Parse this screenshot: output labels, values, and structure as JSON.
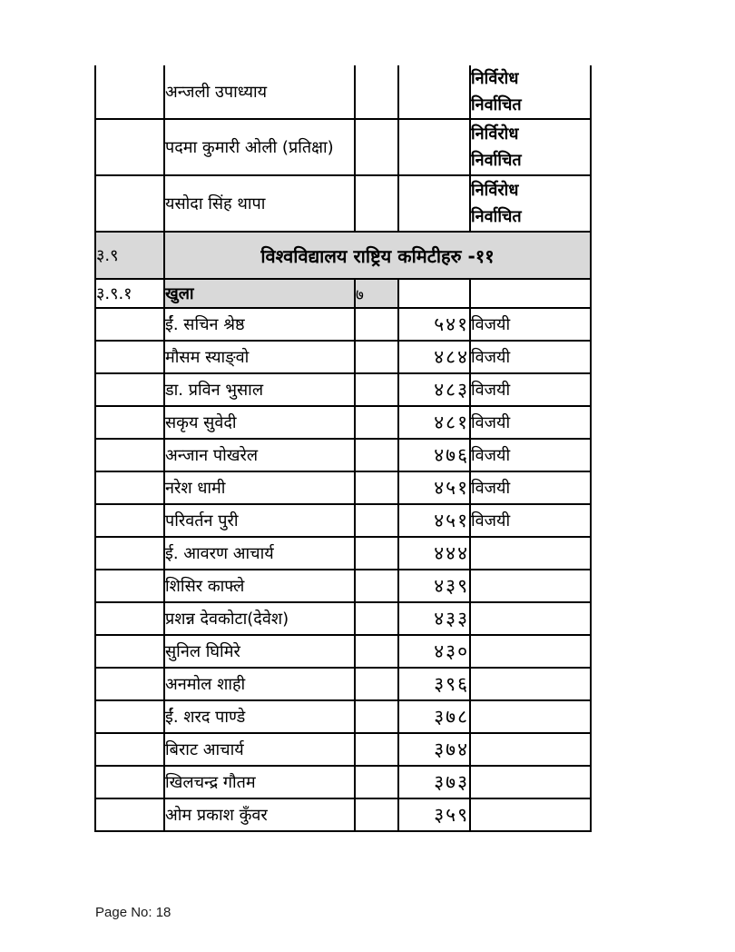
{
  "table": {
    "colors": {
      "header_bg": "#d9d9d9",
      "border": "#000000",
      "page_bg": "#ffffff"
    },
    "unopposed": [
      {
        "name": "अन्जली उपाध्याय",
        "status": "निर्विरोध\nनिर्वाचित"
      },
      {
        "name": "पदमा कुमारी ओली (प्रतिक्षा)",
        "status": "निर्विरोध\nनिर्वाचित"
      },
      {
        "name": "यसोदा सिंह थापा",
        "status": "निर्विरोध\nनिर्वाचित"
      }
    ],
    "section": {
      "number": "३.९",
      "title": "विश्वविद्यालय राष्ट्रिय कमिटीहरु -११"
    },
    "subsection": {
      "number": "३.९.१",
      "category": "खुला",
      "seats": "७"
    },
    "candidates": [
      {
        "name": "ईं. सचिन श्रेष्ठ",
        "votes": "५४१",
        "result": "विजयी"
      },
      {
        "name": "मौसम स्याङ्वो",
        "votes": "४८४",
        "result": "विजयी"
      },
      {
        "name": "डा. प्रविन भुसाल",
        "votes": "४८३",
        "result": "विजयी"
      },
      {
        "name": "सकृय सुवेदी",
        "votes": "४८१",
        "result": "विजयी"
      },
      {
        "name": "अन्जान पोखरेल",
        "votes": "४७६",
        "result": "विजयी"
      },
      {
        "name": "नरेश धामी",
        "votes": "४५१",
        "result": "विजयी"
      },
      {
        "name": "परिवर्तन पुरी",
        "votes": "४५१",
        "result": "विजयी"
      },
      {
        "name": "ई. आवरण आचार्य",
        "votes": "४४४",
        "result": ""
      },
      {
        "name": "शिसिर काफ्ले",
        "votes": "४३९",
        "result": ""
      },
      {
        "name": "प्रशन्न देवकोटा(देवेश)",
        "votes": "४३३",
        "result": ""
      },
      {
        "name": "सुनिल घिमिरे",
        "votes": "४३०",
        "result": ""
      },
      {
        "name": "अनमोल शाही",
        "votes": "३९६",
        "result": ""
      },
      {
        "name": "ईं. शरद पाण्डे",
        "votes": "३७८",
        "result": ""
      },
      {
        "name": "बिराट आचार्य",
        "votes": "३७४",
        "result": ""
      },
      {
        "name": "खिलचन्द्र गौतम",
        "votes": "३७३",
        "result": ""
      },
      {
        "name": "ओम प्रकाश कुँवर",
        "votes": "३५९",
        "result": ""
      }
    ]
  },
  "footer": {
    "page_label": "Page No: 18"
  }
}
